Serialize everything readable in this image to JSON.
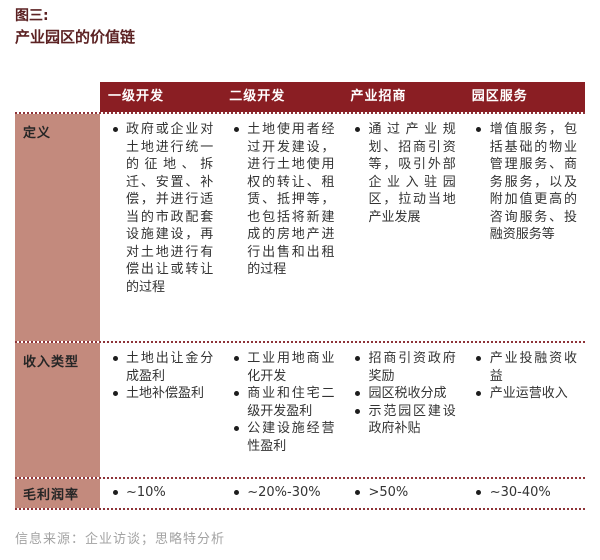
{
  "title": {
    "line1": "图三:",
    "line2": "产业园区的价值链"
  },
  "table": {
    "columns": [
      "一级开发",
      "二级开发",
      "产业招商",
      "园区服务"
    ],
    "rows": [
      {
        "key": "definition",
        "class": "r-def",
        "label": "定义",
        "cells": [
          [
            "政府或企业对土地进行统一的征地、拆迁、安置、补偿，并进行适当的市政配套设施建设，再对土地进行有偿出让或转让的过程"
          ],
          [
            "土地使用者经过开发建设，进行土地使用权的转让、租赁、抵押等，也包括将新建成的房地产进行出售和出租的过程"
          ],
          [
            "通过产业规划、招商引资等，吸引外部企业入驻园区，拉动当地产业发展"
          ],
          [
            "增值服务，包括基础的物业管理服务、商务服务，以及附加值更高的咨询服务、投融资服务等"
          ]
        ]
      },
      {
        "key": "income-type",
        "class": "r-inc",
        "label": "收入类型",
        "cells": [
          [
            "土地出让金分成盈利",
            "土地补偿盈利"
          ],
          [
            "工业用地商业化开发",
            "商业和住宅二级开发盈利",
            "公建设施经营性盈利"
          ],
          [
            "招商引资政府奖励",
            "园区税收分成",
            "示范园区建设政府补贴"
          ],
          [
            "产业投融资收益",
            "产业运营收入"
          ]
        ]
      },
      {
        "key": "gross-margin",
        "class": "r-marg",
        "label": "毛利润率",
        "cells": [
          [
            "~10%"
          ],
          [
            "~20%-30%"
          ],
          [
            ">50%"
          ],
          [
            "~30-40%"
          ]
        ]
      }
    ]
  },
  "footer": {
    "source": "信息来源：企业访谈；思略特分析"
  },
  "colors": {
    "header_bg": "#8a1e23",
    "label_bg": "#c38a7d",
    "title_text": "#5c2223",
    "body_text": "#333333",
    "dotted_border": "#8e3338",
    "footer_text": "#a3a3a3"
  }
}
